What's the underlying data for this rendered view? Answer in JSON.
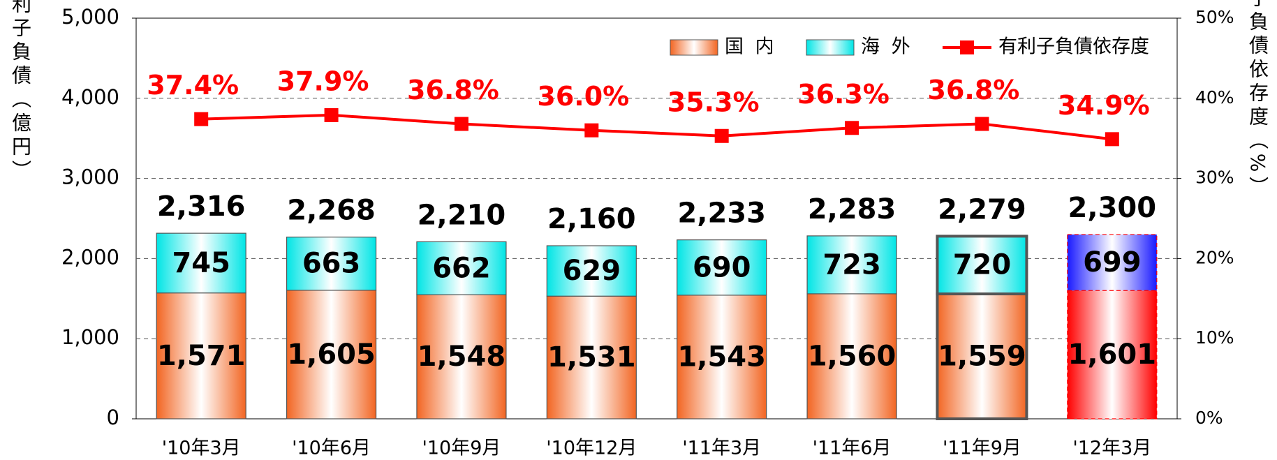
{
  "chart_data": {
    "type": "bar",
    "stacked": true,
    "y_axis_label": "有利子負債（億円）",
    "y2_axis_label": "有利子負債依存度（%）",
    "categories": [
      "'10年3月",
      "'10年6月",
      "'10年9月",
      "'10年12月",
      "'11年3月",
      "'11年6月",
      "'11年9月",
      "'12年3月"
    ],
    "series": [
      {
        "name": "国 内",
        "color": "#f26522",
        "point_colors": [
          "#f26522",
          "#f26522",
          "#f26522",
          "#f26522",
          "#f26522",
          "#f26522",
          "#f26522",
          "#ff0000"
        ],
        "values": [
          1571,
          1605,
          1548,
          1531,
          1543,
          1560,
          1559,
          1601
        ],
        "value_labels": [
          "1,571",
          "1,605",
          "1,548",
          "1,531",
          "1,543",
          "1,560",
          "1,559",
          "1,601"
        ]
      },
      {
        "name": "海 外",
        "color": "#00e5e5",
        "point_colors": [
          "#00e5e5",
          "#00e5e5",
          "#00e5e5",
          "#00e5e5",
          "#00e5e5",
          "#00e5e5",
          "#00e5e5",
          "#1a1aff"
        ],
        "values": [
          745,
          663,
          662,
          629,
          690,
          723,
          720,
          699
        ]
      },
      {
        "name": "有利子負債依存度",
        "type": "line",
        "axis": "y2",
        "color": "#ff0000",
        "values": [
          37.4,
          37.9,
          36.8,
          36.0,
          35.3,
          36.3,
          36.8,
          34.9
        ],
        "value_labels": [
          "37.4%",
          "37.9%",
          "36.8%",
          "36.0%",
          "35.3%",
          "36.3%",
          "36.8%",
          "34.9%"
        ]
      }
    ],
    "totals": [
      2316,
      2268,
      2210,
      2160,
      2233,
      2283,
      2279,
      2300
    ],
    "total_labels": [
      "2,316",
      "2,268",
      "2,210",
      "2,160",
      "2,233",
      "2,283",
      "2,279",
      "2,300"
    ],
    "bar_outline": [
      "thin",
      "thin",
      "thin",
      "thin",
      "thin",
      "thin",
      "bold",
      "dashed"
    ],
    "ylim": [
      0,
      5000
    ],
    "yticks": [
      0,
      {
        "value": 1000,
        "label": "1,000"
      },
      {
        "value": 2000,
        "label": "2,000"
      },
      {
        "value": 3000,
        "label": "3,000"
      },
      {
        "value": 4000,
        "label": "4,000"
      },
      {
        "value": 5000,
        "label": "5,000"
      }
    ],
    "y2lim": [
      0,
      50
    ],
    "y2ticks": [
      {
        "value": 0,
        "label": "0%"
      },
      {
        "value": 10,
        "label": "10%"
      },
      {
        "value": 20,
        "label": "20%"
      },
      {
        "value": 30,
        "label": "30%"
      },
      {
        "value": 40,
        "label": "40%"
      },
      {
        "value": 50,
        "label": "50%"
      }
    ],
    "grid": true,
    "legend": "top-right"
  }
}
